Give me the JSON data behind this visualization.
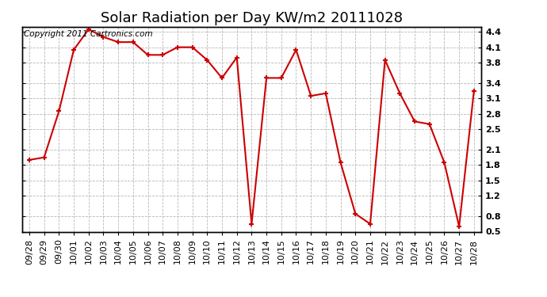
{
  "title": "Solar Radiation per Day KW/m2 20111028",
  "copyright_text": "Copyright 2011 Cartronics.com",
  "x_labels": [
    "09/28",
    "09/29",
    "09/30",
    "10/01",
    "10/02",
    "10/03",
    "10/04",
    "10/05",
    "10/06",
    "10/07",
    "10/08",
    "10/09",
    "10/10",
    "10/11",
    "10/12",
    "10/13",
    "10/14",
    "10/15",
    "10/16",
    "10/17",
    "10/18",
    "10/19",
    "10/20",
    "10/21",
    "10/22",
    "10/23",
    "10/24",
    "10/25",
    "10/26",
    "10/27",
    "10/28"
  ],
  "y_values": [
    1.9,
    1.95,
    2.85,
    4.05,
    4.45,
    4.3,
    4.2,
    4.2,
    3.95,
    3.95,
    4.1,
    4.1,
    3.85,
    3.5,
    3.9,
    0.65,
    3.5,
    3.5,
    4.05,
    3.15,
    3.2,
    1.85,
    0.85,
    0.65,
    3.85,
    3.2,
    2.65,
    2.6,
    1.85,
    0.6,
    3.25
  ],
  "line_color": "#cc0000",
  "marker_color": "#cc0000",
  "bg_color": "#ffffff",
  "grid_color": "#b0b0b0",
  "ylim_min": 0.5,
  "ylim_max": 4.5,
  "yticks": [
    4.4,
    4.1,
    3.8,
    3.4,
    3.1,
    2.8,
    2.5,
    2.1,
    1.8,
    1.5,
    1.2,
    0.8,
    0.5
  ],
  "title_fontsize": 13,
  "tick_fontsize": 8,
  "copyright_fontsize": 7.5
}
